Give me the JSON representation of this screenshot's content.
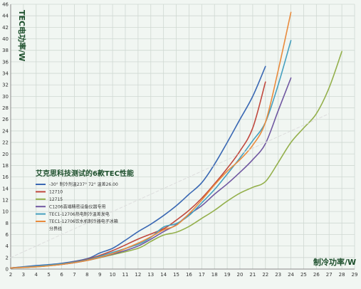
{
  "chart_data": {
    "type": "line",
    "title": "艾克思科技测试的6款TEC性能",
    "xlabel": "制冷功率/W",
    "ylabel": "TEC电功率/W",
    "xlim": [
      2,
      29
    ],
    "ylim": [
      0,
      46
    ],
    "xticks": [
      "2",
      "3",
      "4",
      "5",
      "6",
      "7",
      "8",
      "9",
      "10",
      "11",
      "12",
      "13",
      "14",
      "15",
      "16",
      "17",
      "18",
      "19",
      "20",
      "21",
      "22",
      "23",
      "24",
      "25",
      "26",
      "27",
      "28",
      "29"
    ],
    "yticks": [
      "0",
      "2",
      "4",
      "6",
      "8",
      "10",
      "12",
      "14",
      "16",
      "18",
      "20",
      "22",
      "24",
      "26",
      "28",
      "30",
      "32",
      "34",
      "36",
      "38",
      "40",
      "42",
      "44",
      "46"
    ],
    "grid": true,
    "legend_position": "center-left",
    "series": [
      {
        "name": "-30° 制冷剂温237° 72° 温差26.00",
        "color": "#3a68b3",
        "dashed": false,
        "x": [
          2,
          4,
          6,
          8,
          9,
          10,
          11,
          12,
          13,
          14,
          15,
          16,
          17,
          18,
          19,
          20,
          21,
          22
        ],
        "y": [
          0.2,
          0.6,
          1.0,
          1.8,
          2.8,
          3.6,
          5.0,
          6.5,
          7.8,
          9.3,
          11.0,
          13.0,
          15.0,
          18.2,
          22.0,
          26.0,
          30.0,
          35.2
        ]
      },
      {
        "name": "12710",
        "color": "#c0483e",
        "dashed": false,
        "x": [
          2,
          4,
          6,
          8,
          10,
          12,
          14,
          15,
          16,
          17,
          18,
          19,
          20,
          21,
          22
        ],
        "y": [
          0.2,
          0.5,
          0.9,
          1.7,
          3.2,
          5.2,
          7.0,
          8.5,
          10.2,
          12.3,
          14.8,
          17.5,
          20.5,
          24.5,
          32.5
        ]
      },
      {
        "name": "12715",
        "color": "#94b04c",
        "dashed": false,
        "x": [
          2,
          4,
          6,
          8,
          10,
          12,
          13,
          14,
          15,
          16,
          17,
          18,
          19,
          20,
          21,
          22,
          23,
          24,
          25,
          26,
          27,
          28
        ],
        "y": [
          0.2,
          0.4,
          0.8,
          1.5,
          2.5,
          3.6,
          4.8,
          5.9,
          6.4,
          7.4,
          8.8,
          10.2,
          11.8,
          13.2,
          14.2,
          15.2,
          18.5,
          22.0,
          24.5,
          27.0,
          31.5,
          37.8
        ]
      },
      {
        "name": "C1206高端精密设备仪器专用",
        "color": "#7058a1",
        "dashed": false,
        "x": [
          2,
          4,
          6,
          8,
          10,
          12,
          14,
          15,
          16,
          17,
          18,
          19,
          20,
          21,
          22,
          23,
          24
        ],
        "y": [
          0.2,
          0.5,
          0.8,
          1.5,
          2.6,
          4.0,
          6.5,
          7.7,
          9.5,
          11.0,
          13.0,
          14.8,
          16.8,
          19.0,
          21.8,
          27.5,
          33.2
        ]
      },
      {
        "name": "TEC1-12706热电制冷温差发电",
        "color": "#46a0bf",
        "dashed": false,
        "x": [
          2,
          4,
          6,
          8,
          10,
          12,
          13,
          14,
          15,
          16,
          17,
          18,
          19,
          20,
          21,
          22,
          23,
          24
        ],
        "y": [
          0.2,
          0.5,
          0.9,
          1.6,
          2.9,
          4.3,
          5.5,
          7.3,
          7.9,
          9.3,
          11.5,
          13.8,
          16.5,
          19.3,
          22.3,
          25.5,
          32.0,
          39.7
        ]
      },
      {
        "name": "TEC1-12706饮水机制冷器电子冰箱",
        "color": "#e98b3d",
        "dashed": false,
        "x": [
          2,
          4,
          6,
          8,
          10,
          12,
          13,
          14,
          15,
          16,
          17,
          18,
          19,
          20,
          21,
          22,
          23,
          24
        ],
        "y": [
          0.2,
          0.4,
          0.8,
          1.5,
          2.7,
          4.5,
          5.6,
          6.8,
          7.6,
          9.6,
          12.0,
          14.6,
          17.0,
          19.0,
          21.5,
          25.5,
          34.5,
          44.6
        ]
      },
      {
        "name": "分界线",
        "color": "#dddddd",
        "dashed": true,
        "x": [
          2,
          27
        ],
        "y": [
          2,
          27
        ]
      }
    ]
  }
}
